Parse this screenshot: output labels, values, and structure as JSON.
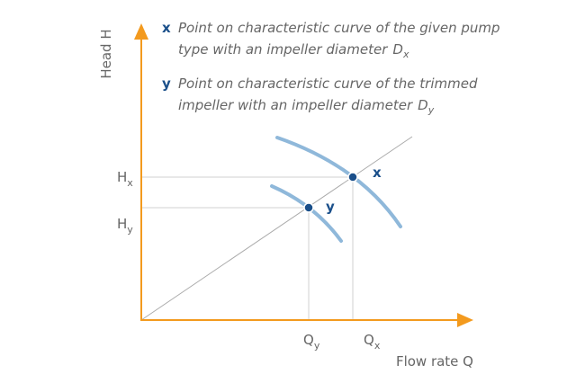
{
  "axes": {
    "y_label": "Head H",
    "x_label": "Flow rate Q"
  },
  "legend": [
    {
      "symbol": "x",
      "lines": [
        "Point on characteristic curve of the given pump",
        "type with an impeller diameter"
      ],
      "var": "D",
      "sub": "x"
    },
    {
      "symbol": "y",
      "lines": [
        "Point on characteristic curve of the trimmed",
        "impeller with an impeller diameter"
      ],
      "var": "D",
      "sub": "y"
    }
  ],
  "ticks": {
    "y": [
      {
        "var": "H",
        "sub": "x"
      },
      {
        "var": "H",
        "sub": "y"
      }
    ],
    "x": [
      {
        "var": "Q",
        "sub": "y"
      },
      {
        "var": "Q",
        "sub": "x"
      }
    ]
  },
  "points": [
    {
      "label": "x"
    },
    {
      "label": "y"
    }
  ]
}
